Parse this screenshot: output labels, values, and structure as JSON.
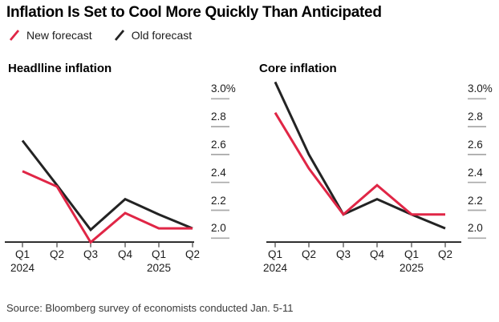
{
  "title": "Inflation Is Set to Cool More Quickly Than Anticipated",
  "legend": {
    "new_label": "New forecast",
    "old_label": "Old forecast"
  },
  "colors": {
    "new_forecast": "#e02646",
    "old_forecast": "#232323",
    "axis": "#000000",
    "grid_dash": "#a9a9a9",
    "text": "#1c1c1c"
  },
  "source": "Source: Bloomberg survey of economists conducted Jan. 5-11",
  "chart_data": [
    {
      "type": "line",
      "title": "Headlline inflation",
      "categories": [
        "Q1 2024",
        "Q2 2024",
        "Q3 2024",
        "Q4 2024",
        "Q1 2025",
        "Q2 2025"
      ],
      "x_tick_labels": [
        "Q1",
        "Q2",
        "Q3",
        "Q4",
        "Q1",
        "Q2"
      ],
      "year_labels": [
        {
          "text": "2024",
          "tick_index": 0
        },
        {
          "text": "2025",
          "tick_index": 4
        }
      ],
      "y_tick_labels": [
        "3.0%",
        "2.8",
        "2.6",
        "2.4",
        "2.2",
        "2.0"
      ],
      "y_tick_values": [
        3.0,
        2.8,
        2.6,
        2.4,
        2.2,
        2.0
      ],
      "ylim": [
        1.95,
        3.15
      ],
      "xlabel": "",
      "ylabel": "",
      "legend_position": "top-left",
      "grid": "right-side value dashes",
      "series": [
        {
          "name": "New forecast",
          "color_key": "new_forecast",
          "values": [
            2.48,
            2.37,
            1.97,
            2.18,
            2.07,
            2.07
          ]
        },
        {
          "name": "Old forecast",
          "color_key": "old_forecast",
          "values": [
            2.7,
            2.38,
            2.06,
            2.28,
            2.17,
            2.07
          ]
        }
      ]
    },
    {
      "type": "line",
      "title": "Core inflation",
      "categories": [
        "Q1 2024",
        "Q2 2024",
        "Q3 2024",
        "Q4 2024",
        "Q1 2025",
        "Q2 2025"
      ],
      "x_tick_labels": [
        "Q1",
        "Q2",
        "Q3",
        "Q4",
        "Q1",
        "Q2"
      ],
      "year_labels": [
        {
          "text": "2024",
          "tick_index": 0
        },
        {
          "text": "2025",
          "tick_index": 4
        }
      ],
      "y_tick_labels": [
        "3.0%",
        "2.8",
        "2.6",
        "2.4",
        "2.2",
        "2.0"
      ],
      "y_tick_values": [
        3.0,
        2.8,
        2.6,
        2.4,
        2.2,
        2.0
      ],
      "ylim": [
        1.95,
        3.15
      ],
      "xlabel": "",
      "ylabel": "",
      "legend_position": "top-left",
      "grid": "right-side value dashes",
      "series": [
        {
          "name": "New forecast",
          "color_key": "new_forecast",
          "values": [
            2.9,
            2.5,
            2.17,
            2.38,
            2.17,
            2.17
          ]
        },
        {
          "name": "Old forecast",
          "color_key": "old_forecast",
          "values": [
            3.12,
            2.6,
            2.17,
            2.28,
            2.17,
            2.07
          ]
        }
      ]
    }
  ]
}
